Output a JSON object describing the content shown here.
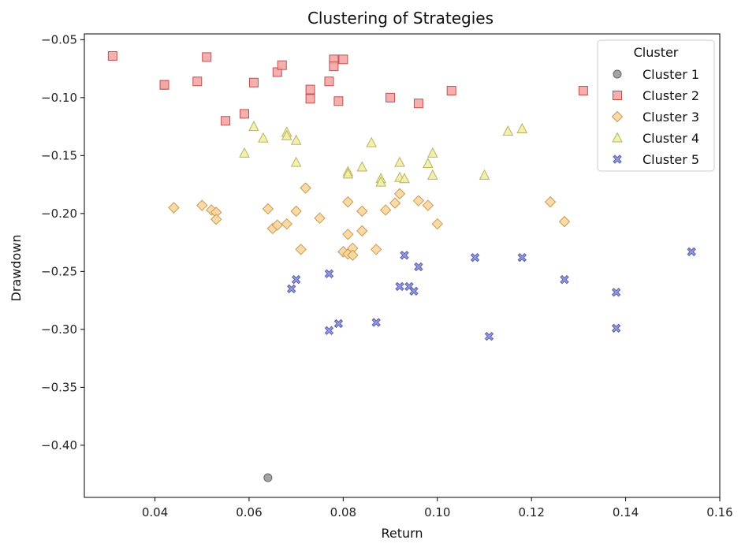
{
  "chart_data": {
    "type": "scatter",
    "title": "Clustering of Strategies",
    "xlabel": "Return",
    "ylabel": "Drawdown",
    "xlim": [
      0.025,
      0.16
    ],
    "ylim": [
      -0.445,
      -0.045
    ],
    "xticks": [
      0.04,
      0.06,
      0.08,
      0.1,
      0.12,
      0.14,
      0.16
    ],
    "xtick_labels": [
      "0.04",
      "0.06",
      "0.08",
      "0.10",
      "0.12",
      "0.14",
      "0.16"
    ],
    "yticks": [
      -0.05,
      -0.1,
      -0.15,
      -0.2,
      -0.25,
      -0.3,
      -0.35,
      -0.4
    ],
    "ytick_labels": [
      "−0.05",
      "−0.10",
      "−0.15",
      "−0.20",
      "−0.25",
      "−0.30",
      "−0.35",
      "−0.40"
    ],
    "grid": false,
    "legend": {
      "title": "Cluster",
      "placement": "upper right"
    },
    "series": [
      {
        "name": "Cluster 1",
        "marker": "circle",
        "fill": "#9a9a9a",
        "stroke": "#666666",
        "points": [
          [
            0.064,
            -0.428
          ]
        ]
      },
      {
        "name": "Cluster 2",
        "marker": "square",
        "fill": "#f4a6a6",
        "stroke": "#c0504d",
        "points": [
          [
            0.031,
            -0.064
          ],
          [
            0.042,
            -0.089
          ],
          [
            0.042,
            -0.089
          ],
          [
            0.049,
            -0.086
          ],
          [
            0.051,
            -0.065
          ],
          [
            0.055,
            -0.12
          ],
          [
            0.059,
            -0.114
          ],
          [
            0.061,
            -0.087
          ],
          [
            0.066,
            -0.078
          ],
          [
            0.067,
            -0.072
          ],
          [
            0.073,
            -0.093
          ],
          [
            0.073,
            -0.101
          ],
          [
            0.077,
            -0.086
          ],
          [
            0.078,
            -0.067
          ],
          [
            0.078,
            -0.073
          ],
          [
            0.079,
            -0.103
          ],
          [
            0.08,
            -0.067
          ],
          [
            0.09,
            -0.1
          ],
          [
            0.096,
            -0.105
          ],
          [
            0.103,
            -0.094
          ],
          [
            0.131,
            -0.094
          ]
        ]
      },
      {
        "name": "Cluster 3",
        "marker": "diamond",
        "fill": "#fbd6a0",
        "stroke": "#c89a4d",
        "points": [
          [
            0.044,
            -0.195
          ],
          [
            0.05,
            -0.193
          ],
          [
            0.052,
            -0.197
          ],
          [
            0.053,
            -0.199
          ],
          [
            0.053,
            -0.205
          ],
          [
            0.064,
            -0.196
          ],
          [
            0.065,
            -0.213
          ],
          [
            0.066,
            -0.21
          ],
          [
            0.068,
            -0.209
          ],
          [
            0.07,
            -0.198
          ],
          [
            0.071,
            -0.231
          ],
          [
            0.072,
            -0.178
          ],
          [
            0.075,
            -0.204
          ],
          [
            0.08,
            -0.233
          ],
          [
            0.081,
            -0.19
          ],
          [
            0.081,
            -0.218
          ],
          [
            0.081,
            -0.235
          ],
          [
            0.082,
            -0.23
          ],
          [
            0.082,
            -0.236
          ],
          [
            0.084,
            -0.198
          ],
          [
            0.084,
            -0.215
          ],
          [
            0.087,
            -0.231
          ],
          [
            0.089,
            -0.197
          ],
          [
            0.091,
            -0.191
          ],
          [
            0.092,
            -0.183
          ],
          [
            0.096,
            -0.189
          ],
          [
            0.098,
            -0.193
          ],
          [
            0.1,
            -0.209
          ],
          [
            0.124,
            -0.19
          ],
          [
            0.127,
            -0.207
          ]
        ]
      },
      {
        "name": "Cluster 4",
        "marker": "triangle",
        "fill": "#f0eeaa",
        "stroke": "#b9b55a",
        "points": [
          [
            0.059,
            -0.148
          ],
          [
            0.061,
            -0.125
          ],
          [
            0.063,
            -0.135
          ],
          [
            0.068,
            -0.13
          ],
          [
            0.068,
            -0.133
          ],
          [
            0.07,
            -0.137
          ],
          [
            0.07,
            -0.156
          ],
          [
            0.081,
            -0.164
          ],
          [
            0.081,
            -0.166
          ],
          [
            0.084,
            -0.16
          ],
          [
            0.086,
            -0.139
          ],
          [
            0.088,
            -0.17
          ],
          [
            0.088,
            -0.173
          ],
          [
            0.092,
            -0.156
          ],
          [
            0.092,
            -0.169
          ],
          [
            0.093,
            -0.17
          ],
          [
            0.098,
            -0.157
          ],
          [
            0.099,
            -0.148
          ],
          [
            0.099,
            -0.167
          ],
          [
            0.11,
            -0.167
          ],
          [
            0.115,
            -0.129
          ],
          [
            0.118,
            -0.127
          ]
        ]
      },
      {
        "name": "Cluster 5",
        "marker": "plus-x",
        "fill": "#8a8fdc",
        "stroke": "#5a5fb0",
        "points": [
          [
            0.069,
            -0.265
          ],
          [
            0.07,
            -0.257
          ],
          [
            0.077,
            -0.252
          ],
          [
            0.077,
            -0.301
          ],
          [
            0.079,
            -0.295
          ],
          [
            0.087,
            -0.294
          ],
          [
            0.092,
            -0.263
          ],
          [
            0.093,
            -0.236
          ],
          [
            0.094,
            -0.263
          ],
          [
            0.095,
            -0.267
          ],
          [
            0.096,
            -0.246
          ],
          [
            0.108,
            -0.238
          ],
          [
            0.111,
            -0.306
          ],
          [
            0.118,
            -0.238
          ],
          [
            0.127,
            -0.257
          ],
          [
            0.138,
            -0.268
          ],
          [
            0.138,
            -0.299
          ],
          [
            0.154,
            -0.233
          ]
        ]
      }
    ]
  }
}
